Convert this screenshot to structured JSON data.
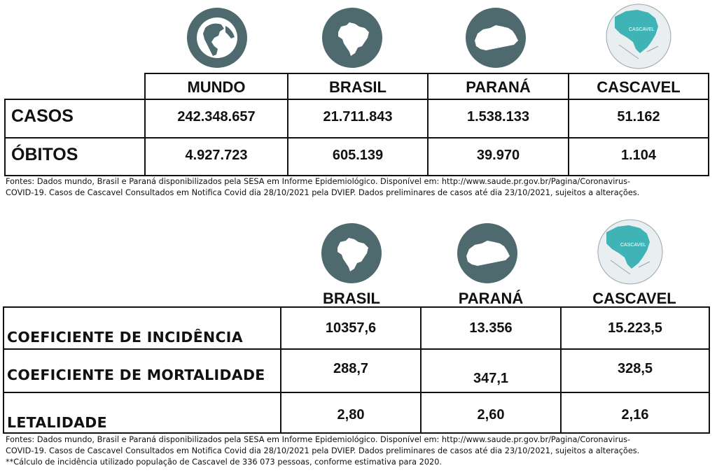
{
  "colors": {
    "icon_bg": "#4e6a6f",
    "cascavel_region": "#3fb3b5",
    "border": "#111111"
  },
  "icons": {
    "mundo": "globe-icon",
    "brasil": "brazil-map-icon",
    "parana": "parana-map-icon",
    "cascavel": "cascavel-map-icon",
    "cascavel_label": "CASCAVEL"
  },
  "table1": {
    "headers": [
      "MUNDO",
      "BRASIL",
      "PARANÁ",
      "CASCAVEL"
    ],
    "rows": [
      {
        "label": "CASOS",
        "values": [
          "242.348.657",
          "21.711.843",
          "1.538.133",
          "51.162"
        ]
      },
      {
        "label": "ÓBITOS",
        "values": [
          "4.927.723",
          "605.139",
          "39.970",
          "1.104"
        ]
      }
    ],
    "note_lines": [
      "Fontes: Dados mundo, Brasil e Paraná disponibilizados pela  SESA em Informe Epidemiológico. Disponível em: http://www.saude.pr.gov.br/Pagina/Coronavirus-",
      "COVID-19.  Casos de Cascavel Consultados em Notifica Covid dia 28/10/2021 pela DVIEP. Dados preliminares de casos até dia 23/10/2021, sujeitos a alterações."
    ]
  },
  "table2": {
    "headers": [
      "BRASIL",
      "PARANÁ",
      "CASCAVEL"
    ],
    "rows": [
      {
        "label": "COEFICIENTE DE INCIDÊNCIA",
        "values": [
          "10357,6",
          "13.356",
          "15.223,5"
        ]
      },
      {
        "label": "COEFICIENTE DE MORTALIDADE",
        "values": [
          "288,7",
          "347,1",
          "328,5"
        ]
      },
      {
        "label": "LETALIDADE",
        "values": [
          "2,80",
          "2,60",
          "2,16"
        ]
      }
    ],
    "note_lines": [
      "Fontes: Dados mundo, Brasil e Paraná disponibilizados pela  SESA em Informe Epidemiológico. Disponível em: http://www.saude.pr.gov.br/Pagina/Coronavirus-",
      "COVID-19. Casos de Cascavel Consultados em Notifica Covid dia 28/10/2021 pela DVIEP. Dados preliminares de casos até dia 23/10/2021, sujeitos a alterações.",
      "**Cálculo de incidência utilizado população de Cascavel de 336 073 pessoas, conforme estimativa para 2020."
    ]
  }
}
